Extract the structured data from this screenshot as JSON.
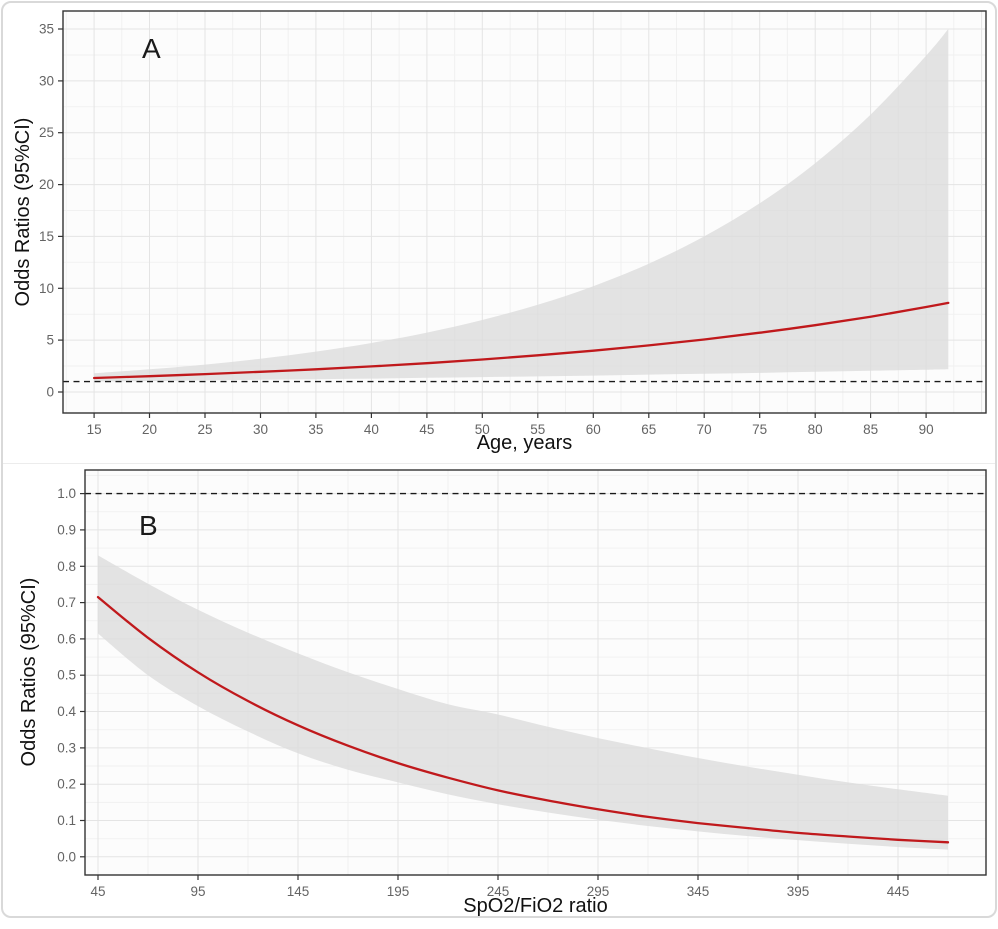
{
  "chart_data": [
    {
      "type": "line",
      "panel_label": "A",
      "xlabel": "Age, years",
      "ylabel": "Odds Ratios (95%CI)",
      "xlim": [
        12.2,
        95.4
      ],
      "ylim": [
        -2.03,
        36.74
      ],
      "x": [
        15,
        20,
        25,
        30,
        35,
        40,
        45,
        50,
        55,
        60,
        65,
        70,
        75,
        80,
        85,
        90,
        92
      ],
      "series": [
        {
          "name": "odds-ratio",
          "values": [
            1.35,
            1.52,
            1.72,
            1.94,
            2.18,
            2.46,
            2.77,
            3.13,
            3.53,
            3.98,
            4.49,
            5.06,
            5.71,
            6.44,
            7.26,
            8.19,
            8.59
          ]
        },
        {
          "name": "ci-lower",
          "values": [
            1.0,
            1.05,
            1.11,
            1.17,
            1.23,
            1.29,
            1.36,
            1.43,
            1.5,
            1.58,
            1.67,
            1.75,
            1.84,
            1.94,
            2.04,
            2.15,
            2.19
          ]
        },
        {
          "name": "ci-upper",
          "values": [
            1.8,
            2.18,
            2.64,
            3.21,
            3.89,
            4.72,
            5.72,
            6.94,
            8.41,
            10.2,
            12.37,
            15.0,
            18.19,
            22.06,
            26.75,
            32.43,
            35.0
          ]
        }
      ],
      "reference_line_y": 1,
      "x_ticks": [
        {
          "v": 15,
          "label": "15"
        },
        {
          "v": 20,
          "label": "20"
        },
        {
          "v": 25,
          "label": "25"
        },
        {
          "v": 30,
          "label": "30"
        },
        {
          "v": 35,
          "label": "35"
        },
        {
          "v": 40,
          "label": "40"
        },
        {
          "v": 45,
          "label": "45"
        },
        {
          "v": 50,
          "label": "50"
        },
        {
          "v": 55,
          "label": "55"
        },
        {
          "v": 60,
          "label": "60"
        },
        {
          "v": 65,
          "label": "65"
        },
        {
          "v": 70,
          "label": "70"
        },
        {
          "v": 75,
          "label": "75"
        },
        {
          "v": 80,
          "label": "80"
        },
        {
          "v": 85,
          "label": "85"
        },
        {
          "v": 90,
          "label": "90"
        }
      ],
      "x_grid_extra": [
        95
      ],
      "y_ticks": [
        {
          "v": 0,
          "label": "0"
        },
        {
          "v": 5,
          "label": "5"
        },
        {
          "v": 10,
          "label": "10"
        },
        {
          "v": 15,
          "label": "15"
        },
        {
          "v": 20,
          "label": "20"
        },
        {
          "v": 25,
          "label": "25"
        },
        {
          "v": 30,
          "label": "30"
        },
        {
          "v": 35,
          "label": "35"
        }
      ],
      "x_minor": [
        12.5,
        17.5,
        22.5,
        27.5,
        32.5,
        37.5,
        42.5,
        47.5,
        52.5,
        57.5,
        62.5,
        67.5,
        72.5,
        77.5,
        82.5,
        87.5,
        92.5
      ],
      "y_minor": [
        2.5,
        7.5,
        12.5,
        17.5,
        22.5,
        27.5,
        32.5
      ],
      "grid": true,
      "legend": false,
      "colors": {
        "line": "#c0191c",
        "band": "#dcdcdc",
        "frame": "#333333",
        "grid_major": "#e4e4e4",
        "grid_minor": "#f1f1f1",
        "reference": "#1a1a1a",
        "tick_text": "#646464",
        "panel_bg": "#fcfcfc"
      }
    },
    {
      "type": "line",
      "panel_label": "B",
      "xlabel": "SpO2/FiO2 ratio",
      "ylabel": "Odds Ratios (95%CI)",
      "xlim": [
        38.5,
        489
      ],
      "ylim": [
        -0.05,
        1.065
      ],
      "x": [
        45,
        70,
        95,
        120,
        145,
        170,
        195,
        220,
        245,
        270,
        295,
        320,
        345,
        370,
        395,
        420,
        445,
        470
      ],
      "series": [
        {
          "name": "odds-ratio",
          "values": [
            0.715,
            0.603,
            0.508,
            0.429,
            0.362,
            0.306,
            0.258,
            0.218,
            0.183,
            0.155,
            0.131,
            0.11,
            0.093,
            0.079,
            0.066,
            0.056,
            0.047,
            0.04
          ]
        },
        {
          "name": "ci-lower",
          "values": [
            0.615,
            0.5,
            0.415,
            0.345,
            0.285,
            0.24,
            0.205,
            0.172,
            0.145,
            0.122,
            0.102,
            0.085,
            0.07,
            0.057,
            0.046,
            0.036,
            0.027,
            0.02
          ]
        },
        {
          "name": "ci-upper",
          "values": [
            0.83,
            0.752,
            0.68,
            0.617,
            0.56,
            0.508,
            0.462,
            0.42,
            0.392,
            0.358,
            0.327,
            0.299,
            0.272,
            0.248,
            0.226,
            0.205,
            0.186,
            0.168
          ]
        }
      ],
      "reference_line_y": 1,
      "x_ticks": [
        {
          "v": 45,
          "label": "45"
        },
        {
          "v": 95,
          "label": "95"
        },
        {
          "v": 145,
          "label": "145"
        },
        {
          "v": 195,
          "label": "195"
        },
        {
          "v": 245,
          "label": "245"
        },
        {
          "v": 295,
          "label": "295"
        },
        {
          "v": 345,
          "label": "345"
        },
        {
          "v": 395,
          "label": "395"
        },
        {
          "v": 445,
          "label": "445"
        }
      ],
      "x_grid_extra": [],
      "y_ticks": [
        {
          "v": 0.0,
          "label": "0.0"
        },
        {
          "v": 0.1,
          "label": "0.1"
        },
        {
          "v": 0.2,
          "label": "0.2"
        },
        {
          "v": 0.3,
          "label": "0.3"
        },
        {
          "v": 0.4,
          "label": "0.4"
        },
        {
          "v": 0.5,
          "label": "0.5"
        },
        {
          "v": 0.6,
          "label": "0.6"
        },
        {
          "v": 0.7,
          "label": "0.7"
        },
        {
          "v": 0.8,
          "label": "0.8"
        },
        {
          "v": 0.9,
          "label": "0.9"
        },
        {
          "v": 1.0,
          "label": "1.0"
        }
      ],
      "x_minor": [
        70,
        120,
        170,
        220,
        270,
        320,
        370,
        420,
        470
      ],
      "y_minor": [
        0.05,
        0.15,
        0.25,
        0.35,
        0.45,
        0.55,
        0.65,
        0.75,
        0.85,
        0.95,
        1.05
      ],
      "grid": true,
      "legend": false,
      "colors": {
        "line": "#c0191c",
        "band": "#dcdcdc",
        "frame": "#333333",
        "grid_major": "#e4e4e4",
        "grid_minor": "#f1f1f1",
        "reference": "#1a1a1a",
        "tick_text": "#646464",
        "panel_bg": "#fcfcfc"
      }
    }
  ]
}
